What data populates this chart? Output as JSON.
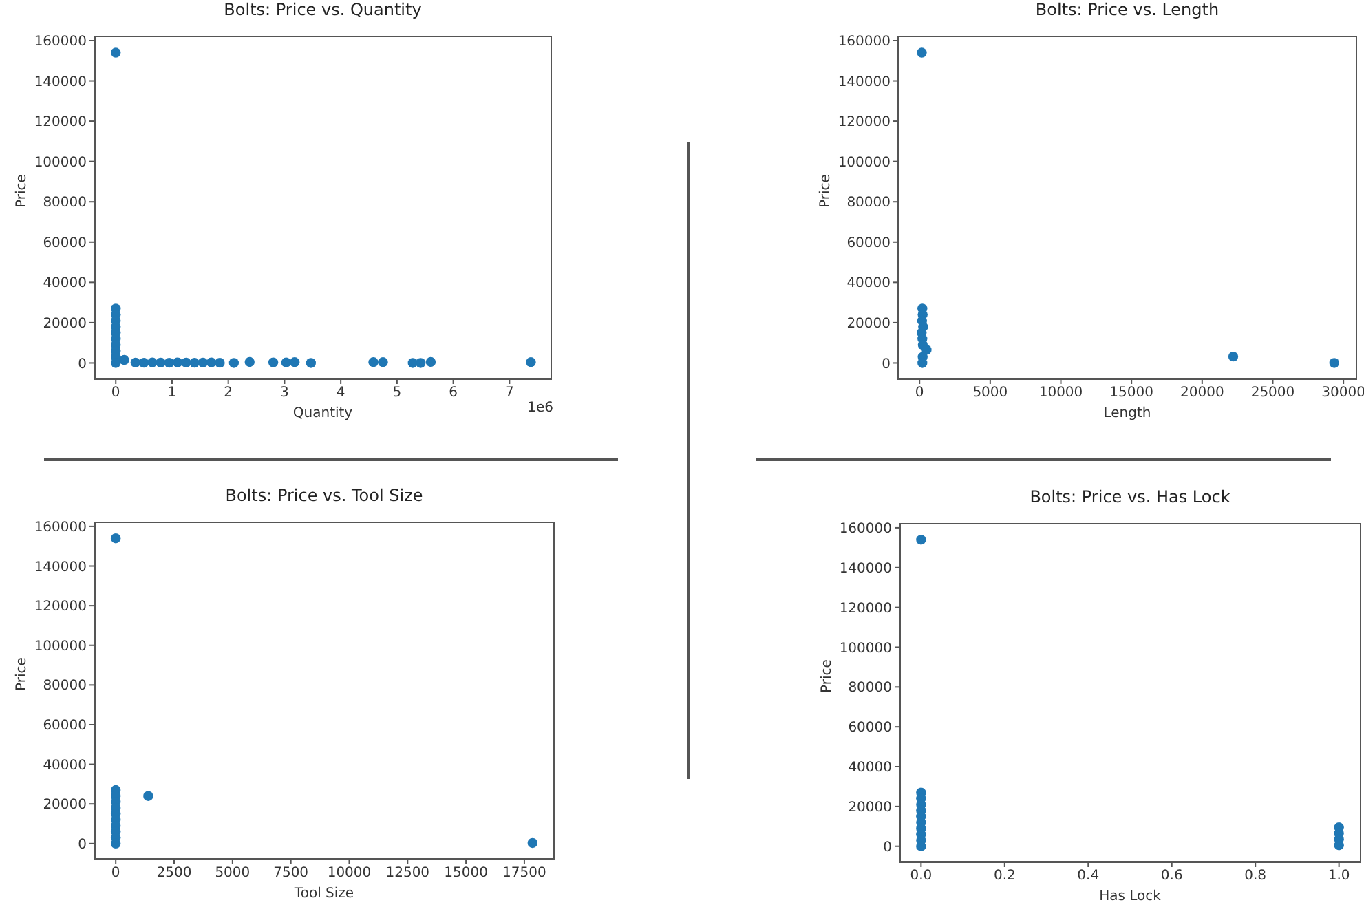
{
  "chart_data": [
    {
      "type": "scatter",
      "title": "Bolts: Price vs. Quantity",
      "xlabel": "Quantity",
      "ylabel": "Price",
      "color": "#1f77b4",
      "marker": "circle",
      "x": [
        0,
        0,
        0,
        0,
        0,
        0,
        0,
        0,
        0,
        0,
        0,
        0.15,
        0.35,
        0.5,
        0.65,
        0.8,
        0.95,
        1.1,
        1.25,
        1.4,
        1.55,
        1.7,
        1.85,
        2.1,
        2.38,
        2.8,
        3.03,
        3.18,
        3.47,
        4.58,
        4.75,
        5.28,
        5.42,
        5.6,
        7.38
      ],
      "values": [
        154000,
        27000,
        24000,
        21000,
        18000,
        15000,
        12000,
        9000,
        6000,
        3000,
        0,
        1500,
        200,
        100,
        300,
        200,
        100,
        300,
        200,
        100,
        200,
        300,
        100,
        0,
        500,
        300,
        250,
        400,
        0,
        400,
        400,
        0,
        0,
        500,
        400
      ],
      "xlim": [
        -0.37,
        7.73
      ],
      "xticks": [
        0,
        1,
        2,
        3,
        4,
        5,
        6,
        7
      ],
      "ylim": [
        -7700,
        161700
      ],
      "yticks": [
        0,
        20000,
        40000,
        60000,
        80000,
        100000,
        120000,
        140000,
        160000
      ],
      "annotations": [
        "1e6"
      ]
    },
    {
      "type": "scatter",
      "title": "Bolts: Price vs. Length",
      "xlabel": "Length",
      "ylabel": "Price",
      "color": "#1f77b4",
      "marker": "circle",
      "x": [
        160,
        200,
        220,
        180,
        250,
        150,
        200,
        230,
        500,
        220,
        200,
        22200,
        29350
      ],
      "values": [
        154000,
        27000,
        24000,
        21000,
        18000,
        15000,
        12000,
        9000,
        6500,
        3000,
        0,
        3200,
        0
      ],
      "xlim": [
        -1470,
        30870
      ],
      "xticks": [
        0,
        5000,
        10000,
        15000,
        20000,
        25000,
        30000
      ],
      "ylim": [
        -7700,
        161700
      ],
      "yticks": [
        0,
        20000,
        40000,
        60000,
        80000,
        100000,
        120000,
        140000,
        160000
      ]
    },
    {
      "type": "scatter",
      "title": "Bolts: Price vs. Tool Size",
      "xlabel": "Tool Size",
      "ylabel": "Price",
      "color": "#1f77b4",
      "marker": "circle",
      "x": [
        0,
        0,
        0,
        0,
        0,
        0,
        0,
        0,
        0,
        0,
        0,
        1390,
        17850
      ],
      "values": [
        154000,
        27000,
        24000,
        21000,
        18000,
        15000,
        12000,
        9000,
        6000,
        3000,
        0,
        24000,
        300
      ],
      "xlim": [
        -890,
        18740
      ],
      "xticks": [
        0,
        2500,
        5000,
        7500,
        10000,
        12500,
        15000,
        17500
      ],
      "ylim": [
        -7700,
        161700
      ],
      "yticks": [
        0,
        20000,
        40000,
        60000,
        80000,
        100000,
        120000,
        140000,
        160000
      ]
    },
    {
      "type": "scatter",
      "title": "Bolts: Price vs. Has Lock",
      "xlabel": "Has Lock",
      "ylabel": "Price",
      "color": "#1f77b4",
      "marker": "circle",
      "x": [
        0,
        0,
        0,
        0,
        0,
        0,
        0,
        0,
        0,
        0,
        0,
        1,
        1,
        1,
        1
      ],
      "values": [
        154000,
        27000,
        24000,
        21000,
        18000,
        15000,
        12000,
        9000,
        6000,
        3000,
        0,
        9500,
        6500,
        3500,
        500
      ],
      "xlim": [
        -0.05,
        1.05
      ],
      "xticks": [
        {
          "value": 0,
          "label": "0.0"
        },
        {
          "value": 0.2,
          "label": "0.2"
        },
        {
          "value": 0.4,
          "label": "0.4"
        },
        {
          "value": 0.6,
          "label": "0.6"
        },
        {
          "value": 0.8,
          "label": "0.8"
        },
        {
          "value": 1,
          "label": "1.0"
        }
      ],
      "ylim": [
        -7700,
        161700
      ],
      "yticks": [
        0,
        20000,
        40000,
        60000,
        80000,
        100000,
        120000,
        140000,
        160000
      ]
    }
  ]
}
